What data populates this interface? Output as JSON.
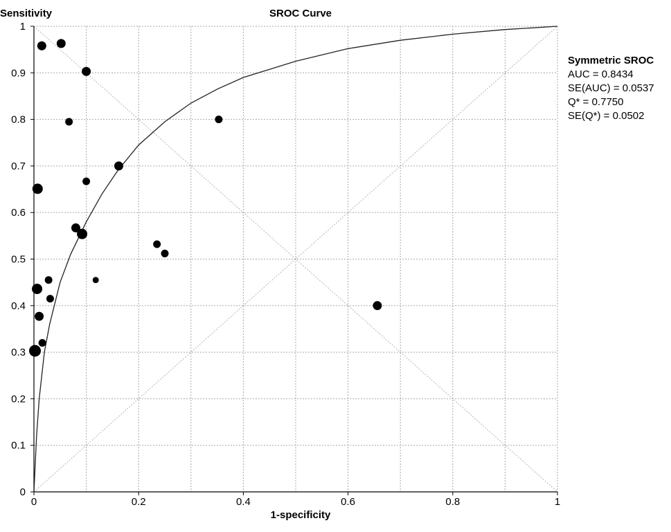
{
  "chart_data": {
    "type": "scatter",
    "title": "SROC Curve",
    "ylabel": "Sensitivity",
    "xlabel": "1-specificity",
    "xlim": [
      0,
      1
    ],
    "ylim": [
      0,
      1
    ],
    "grid": true,
    "x_ticks": [
      "0",
      "0.2",
      "0.4",
      "0.6",
      "0.8",
      "1"
    ],
    "y_ticks": [
      "0",
      "0.1",
      "0.2",
      "0.3",
      "0.4",
      "0.5",
      "0.6",
      "0.7",
      "0.8",
      "0.9",
      "1"
    ],
    "reference_lines": [
      "diagonal",
      "anti-diagonal"
    ],
    "curve": {
      "name": "Symmetric SROC",
      "points": [
        [
          0,
          0
        ],
        [
          0.005,
          0.12
        ],
        [
          0.01,
          0.2
        ],
        [
          0.02,
          0.3
        ],
        [
          0.03,
          0.36
        ],
        [
          0.05,
          0.45
        ],
        [
          0.07,
          0.51
        ],
        [
          0.1,
          0.58
        ],
        [
          0.13,
          0.64
        ],
        [
          0.16,
          0.69
        ],
        [
          0.2,
          0.745
        ],
        [
          0.25,
          0.795
        ],
        [
          0.3,
          0.835
        ],
        [
          0.35,
          0.865
        ],
        [
          0.4,
          0.89
        ],
        [
          0.5,
          0.925
        ],
        [
          0.6,
          0.952
        ],
        [
          0.7,
          0.97
        ],
        [
          0.8,
          0.983
        ],
        [
          0.9,
          0.993
        ],
        [
          1,
          1
        ]
      ]
    },
    "points": [
      {
        "x": 0.015,
        "y": 0.958,
        "size": 3
      },
      {
        "x": 0.052,
        "y": 0.963,
        "size": 3
      },
      {
        "x": 0.1,
        "y": 0.903,
        "size": 3
      },
      {
        "x": 0.067,
        "y": 0.795,
        "size": 2
      },
      {
        "x": 0.353,
        "y": 0.8,
        "size": 2
      },
      {
        "x": 0.162,
        "y": 0.7,
        "size": 3
      },
      {
        "x": 0.1,
        "y": 0.667,
        "size": 2
      },
      {
        "x": 0.007,
        "y": 0.651,
        "size": 4
      },
      {
        "x": 0.08,
        "y": 0.567,
        "size": 3
      },
      {
        "x": 0.092,
        "y": 0.554,
        "size": 4
      },
      {
        "x": 0.235,
        "y": 0.532,
        "size": 2
      },
      {
        "x": 0.25,
        "y": 0.512,
        "size": 2
      },
      {
        "x": 0.028,
        "y": 0.455,
        "size": 2
      },
      {
        "x": 0.118,
        "y": 0.455,
        "size": 1
      },
      {
        "x": 0.006,
        "y": 0.436,
        "size": 4
      },
      {
        "x": 0.031,
        "y": 0.415,
        "size": 2
      },
      {
        "x": 0.656,
        "y": 0.4,
        "size": 3
      },
      {
        "x": 0.01,
        "y": 0.377,
        "size": 3
      },
      {
        "x": 0.016,
        "y": 0.32,
        "size": 2
      },
      {
        "x": 0.002,
        "y": 0.303,
        "size": 5
      }
    ],
    "stats": {
      "title": "Symmetric SROC",
      "lines": [
        "AUC = 0.8434",
        "SE(AUC) = 0.0537",
        "Q* = 0.7750",
        "SE(Q*) = 0.0502"
      ]
    }
  }
}
